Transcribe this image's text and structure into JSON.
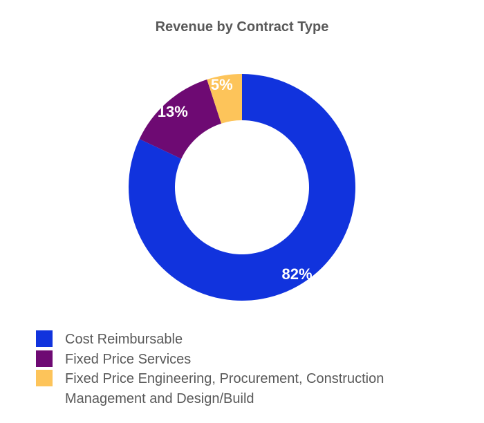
{
  "chart_data": {
    "type": "pie",
    "title": "Revenue by Contract Type",
    "categories": [
      "Cost Reimbursable",
      "Fixed Price Services",
      "Fixed Price Engineering, Procurement, Construction Management and Design/Build"
    ],
    "values": [
      82,
      13,
      5
    ],
    "labels": [
      "82%",
      "13%",
      "5%"
    ],
    "colors": [
      "#1133DD",
      "#6E0A73",
      "#FDC45A"
    ],
    "donut": true,
    "legend_position": "bottom"
  }
}
